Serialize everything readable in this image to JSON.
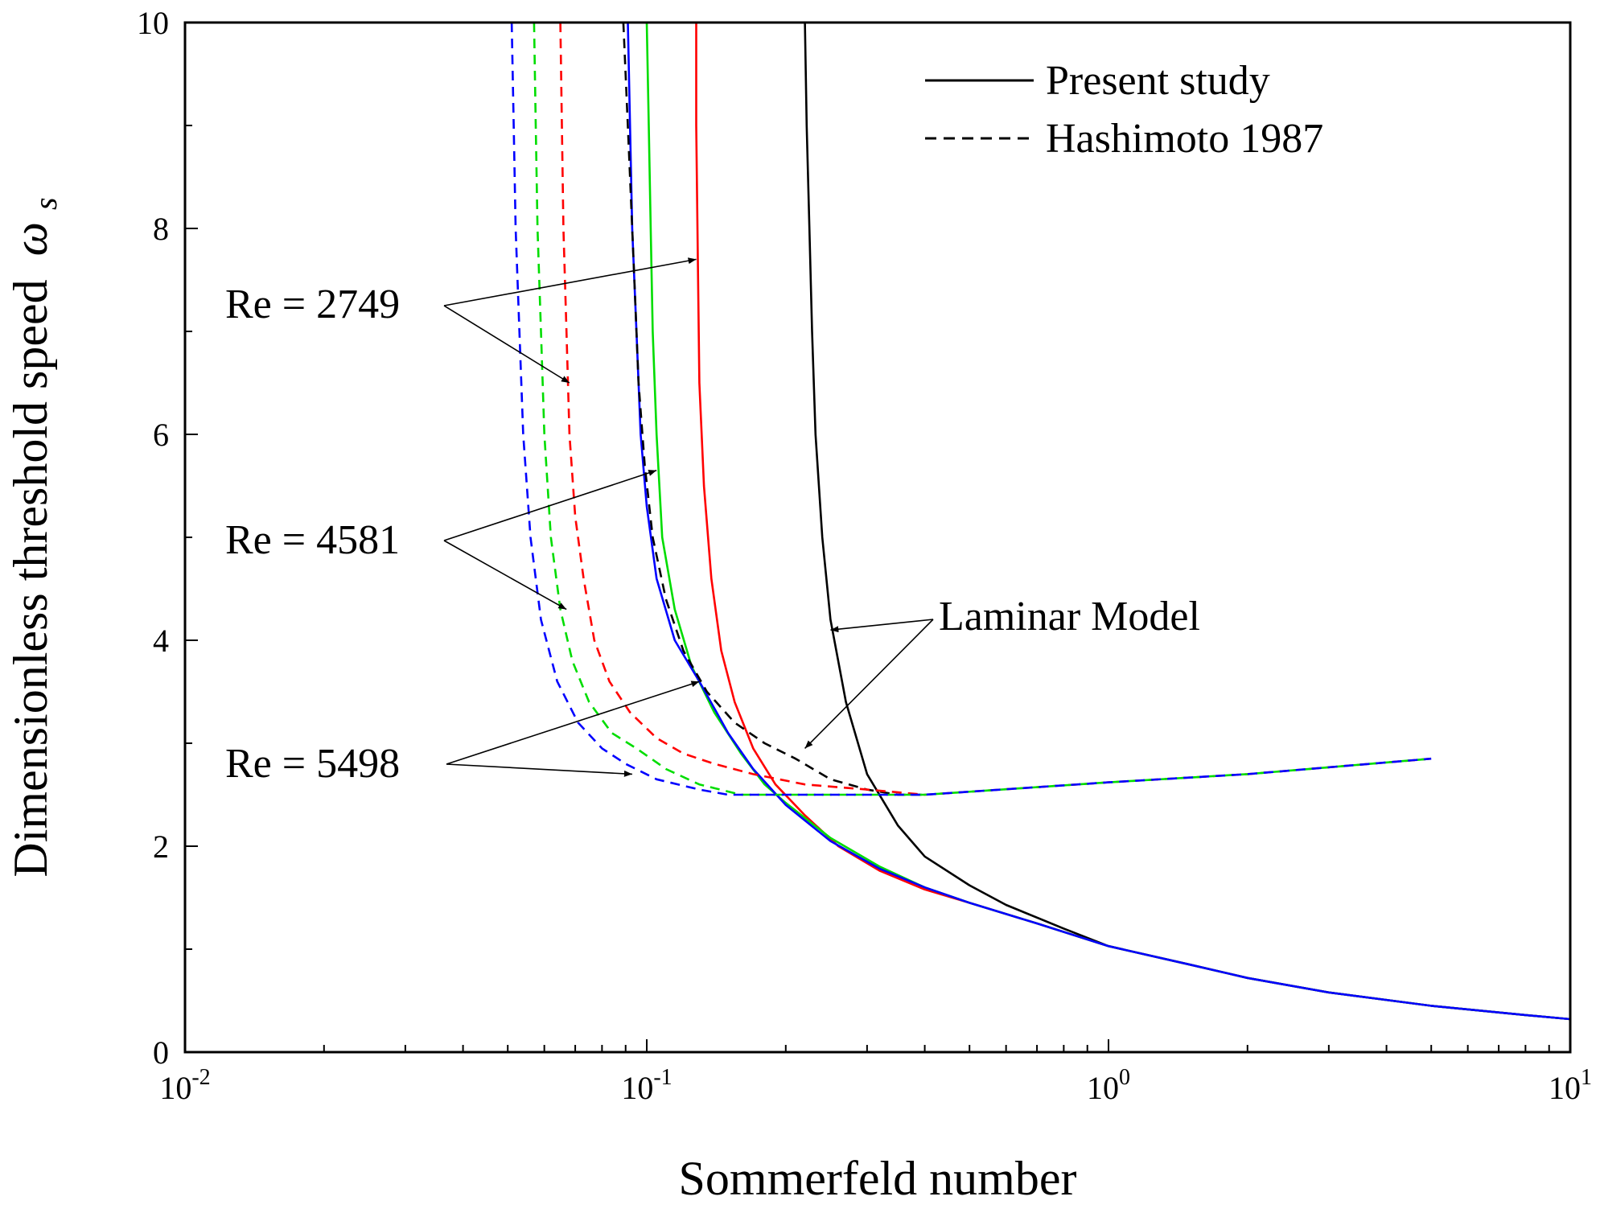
{
  "chart_data": {
    "type": "line",
    "title": "",
    "xlabel": "Sommerfeld number",
    "ylabel": "Dimensionless threshold speed",
    "ylabel_symbol": "ω",
    "ylabel_subscript": "s",
    "xscale": "log",
    "xlim": [
      0.01,
      10
    ],
    "ylim": [
      0,
      10
    ],
    "x_ticks": [
      {
        "value": 0.01,
        "base": "10",
        "exp": "-2"
      },
      {
        "value": 0.1,
        "base": "10",
        "exp": "-1"
      },
      {
        "value": 1,
        "base": "10",
        "exp": "0"
      },
      {
        "value": 10,
        "base": "10",
        "exp": "1"
      }
    ],
    "y_ticks": [
      {
        "value": 0,
        "label": "0"
      },
      {
        "value": 2,
        "label": "2"
      },
      {
        "value": 4,
        "label": "4"
      },
      {
        "value": 6,
        "label": "6"
      },
      {
        "value": 8,
        "label": "8"
      },
      {
        "value": 10,
        "label": "10"
      }
    ],
    "legend": {
      "position": "top-right",
      "entries": [
        {
          "label": "Present study",
          "style": "solid"
        },
        {
          "label": "Hashimoto 1987",
          "style": "dashed"
        }
      ]
    },
    "colors": {
      "red": "#ff0000",
      "green": "#00dd00",
      "blue": "#0000ff",
      "black": "#000000"
    },
    "series": [
      {
        "name": "Laminar Model - Present study",
        "color": "#000000",
        "style": "solid",
        "points": [
          [
            0.22,
            10
          ],
          [
            0.222,
            9
          ],
          [
            0.225,
            8
          ],
          [
            0.228,
            7
          ],
          [
            0.232,
            6
          ],
          [
            0.24,
            5
          ],
          [
            0.25,
            4.2
          ],
          [
            0.27,
            3.4
          ],
          [
            0.3,
            2.7
          ],
          [
            0.35,
            2.2
          ],
          [
            0.4,
            1.9
          ],
          [
            0.5,
            1.62
          ],
          [
            0.6,
            1.43
          ],
          [
            0.8,
            1.2
          ],
          [
            1,
            1.03
          ],
          [
            1.5,
            0.85
          ],
          [
            2,
            0.72
          ],
          [
            3,
            0.58
          ],
          [
            5,
            0.45
          ],
          [
            8,
            0.36
          ],
          [
            10,
            0.32
          ]
        ]
      },
      {
        "name": "Re = 2749 - Present study",
        "color": "#ff0000",
        "style": "solid",
        "points": [
          [
            0.128,
            10
          ],
          [
            0.128,
            9
          ],
          [
            0.129,
            7.7
          ],
          [
            0.13,
            6.5
          ],
          [
            0.133,
            5.5
          ],
          [
            0.138,
            4.6
          ],
          [
            0.145,
            3.9
          ],
          [
            0.155,
            3.4
          ],
          [
            0.17,
            2.95
          ],
          [
            0.19,
            2.6
          ],
          [
            0.22,
            2.3
          ],
          [
            0.26,
            2.0
          ],
          [
            0.32,
            1.76
          ],
          [
            0.4,
            1.58
          ],
          [
            0.5,
            1.45
          ],
          [
            0.7,
            1.25
          ],
          [
            1,
            1.03
          ],
          [
            1.5,
            0.85
          ],
          [
            2,
            0.72
          ],
          [
            3,
            0.58
          ],
          [
            5,
            0.45
          ],
          [
            8,
            0.36
          ],
          [
            10,
            0.32
          ]
        ]
      },
      {
        "name": "Re = 4581 - Present study",
        "color": "#00dd00",
        "style": "solid",
        "points": [
          [
            0.1,
            10
          ],
          [
            0.101,
            9
          ],
          [
            0.102,
            8
          ],
          [
            0.103,
            7
          ],
          [
            0.105,
            6
          ],
          [
            0.108,
            5
          ],
          [
            0.115,
            4.3
          ],
          [
            0.125,
            3.75
          ],
          [
            0.14,
            3.3
          ],
          [
            0.16,
            2.9
          ],
          [
            0.18,
            2.6
          ],
          [
            0.2,
            2.42
          ],
          [
            0.25,
            2.08
          ],
          [
            0.32,
            1.8
          ],
          [
            0.4,
            1.6
          ],
          [
            0.5,
            1.45
          ],
          [
            0.7,
            1.25
          ],
          [
            1,
            1.03
          ],
          [
            1.5,
            0.85
          ],
          [
            2,
            0.72
          ],
          [
            3,
            0.58
          ],
          [
            5,
            0.45
          ],
          [
            8,
            0.36
          ],
          [
            10,
            0.32
          ]
        ]
      },
      {
        "name": "Re = 5498 - Present study",
        "color": "#0000ff",
        "style": "solid",
        "points": [
          [
            0.091,
            10
          ],
          [
            0.092,
            9
          ],
          [
            0.093,
            8
          ],
          [
            0.095,
            7
          ],
          [
            0.097,
            6
          ],
          [
            0.1,
            5.3
          ],
          [
            0.105,
            4.6
          ],
          [
            0.115,
            4.0
          ],
          [
            0.13,
            3.6
          ],
          [
            0.15,
            3.1
          ],
          [
            0.17,
            2.75
          ],
          [
            0.2,
            2.4
          ],
          [
            0.25,
            2.05
          ],
          [
            0.32,
            1.78
          ],
          [
            0.4,
            1.6
          ],
          [
            0.5,
            1.45
          ],
          [
            0.7,
            1.25
          ],
          [
            1,
            1.03
          ],
          [
            1.5,
            0.85
          ],
          [
            2,
            0.72
          ],
          [
            3,
            0.58
          ],
          [
            5,
            0.45
          ],
          [
            8,
            0.36
          ],
          [
            10,
            0.32
          ]
        ]
      },
      {
        "name": "Laminar Model - Hashimoto 1987",
        "color": "#000000",
        "style": "dashed",
        "points": [
          [
            0.089,
            10
          ],
          [
            0.09,
            9.5
          ],
          [
            0.092,
            8.5
          ],
          [
            0.094,
            7.5
          ],
          [
            0.096,
            6.5
          ],
          [
            0.099,
            5.7
          ],
          [
            0.103,
            5.0
          ],
          [
            0.11,
            4.4
          ],
          [
            0.12,
            3.9
          ],
          [
            0.135,
            3.5
          ],
          [
            0.155,
            3.2
          ],
          [
            0.18,
            3.0
          ],
          [
            0.21,
            2.85
          ],
          [
            0.25,
            2.65
          ],
          [
            0.3,
            2.55
          ],
          [
            0.35,
            2.5
          ],
          [
            0.4,
            2.5
          ]
        ]
      },
      {
        "name": "Re = 2749 - Hashimoto 1987",
        "color": "#ff0000",
        "style": "dashed",
        "points": [
          [
            0.065,
            10
          ],
          [
            0.0655,
            9
          ],
          [
            0.066,
            8
          ],
          [
            0.067,
            7
          ],
          [
            0.068,
            6
          ],
          [
            0.07,
            5.2
          ],
          [
            0.073,
            4.6
          ],
          [
            0.077,
            4.0
          ],
          [
            0.083,
            3.6
          ],
          [
            0.092,
            3.3
          ],
          [
            0.105,
            3.05
          ],
          [
            0.12,
            2.9
          ],
          [
            0.14,
            2.8
          ],
          [
            0.17,
            2.7
          ],
          [
            0.22,
            2.6
          ],
          [
            0.3,
            2.55
          ],
          [
            0.4,
            2.5
          ],
          [
            1,
            2.62
          ],
          [
            2,
            2.7
          ],
          [
            5,
            2.85
          ]
        ]
      },
      {
        "name": "Re = 4581 - Hashimoto 1987",
        "color": "#00dd00",
        "style": "dashed",
        "points": [
          [
            0.057,
            10
          ],
          [
            0.0575,
            9
          ],
          [
            0.058,
            8
          ],
          [
            0.059,
            7
          ],
          [
            0.06,
            6
          ],
          [
            0.062,
            5
          ],
          [
            0.065,
            4.3
          ],
          [
            0.069,
            3.8
          ],
          [
            0.075,
            3.4
          ],
          [
            0.084,
            3.1
          ],
          [
            0.095,
            2.95
          ],
          [
            0.11,
            2.75
          ],
          [
            0.13,
            2.6
          ],
          [
            0.16,
            2.5
          ],
          [
            0.25,
            2.5
          ],
          [
            0.4,
            2.5
          ],
          [
            1,
            2.62
          ],
          [
            2,
            2.7
          ],
          [
            5,
            2.85
          ]
        ]
      },
      {
        "name": "Re = 5498 - Hashimoto 1987",
        "color": "#0000ff",
        "style": "dashed",
        "points": [
          [
            0.051,
            10
          ],
          [
            0.0515,
            9
          ],
          [
            0.052,
            8
          ],
          [
            0.053,
            7
          ],
          [
            0.054,
            6
          ],
          [
            0.056,
            5
          ],
          [
            0.059,
            4.2
          ],
          [
            0.064,
            3.6
          ],
          [
            0.071,
            3.2
          ],
          [
            0.08,
            2.95
          ],
          [
            0.09,
            2.8
          ],
          [
            0.105,
            2.65
          ],
          [
            0.13,
            2.55
          ],
          [
            0.15,
            2.5
          ],
          [
            0.2,
            2.5
          ],
          [
            0.4,
            2.5
          ],
          [
            1,
            2.62
          ],
          [
            2,
            2.7
          ],
          [
            5,
            2.85
          ]
        ]
      }
    ],
    "annotations": [
      {
        "id": "re2749",
        "text": "Re = 2749",
        "targets": [
          [
            0.128,
            7.7
          ],
          [
            0.068,
            6.5
          ]
        ]
      },
      {
        "id": "re4581",
        "text": "Re = 4581",
        "targets": [
          [
            0.105,
            5.65
          ],
          [
            0.067,
            4.3
          ]
        ]
      },
      {
        "id": "re5498",
        "text": "Re = 5498",
        "targets": [
          [
            0.13,
            3.6
          ],
          [
            0.093,
            2.7
          ]
        ]
      },
      {
        "id": "laminar",
        "text": "Laminar Model",
        "targets": [
          [
            0.25,
            4.1
          ],
          [
            0.22,
            2.95
          ]
        ]
      }
    ]
  }
}
